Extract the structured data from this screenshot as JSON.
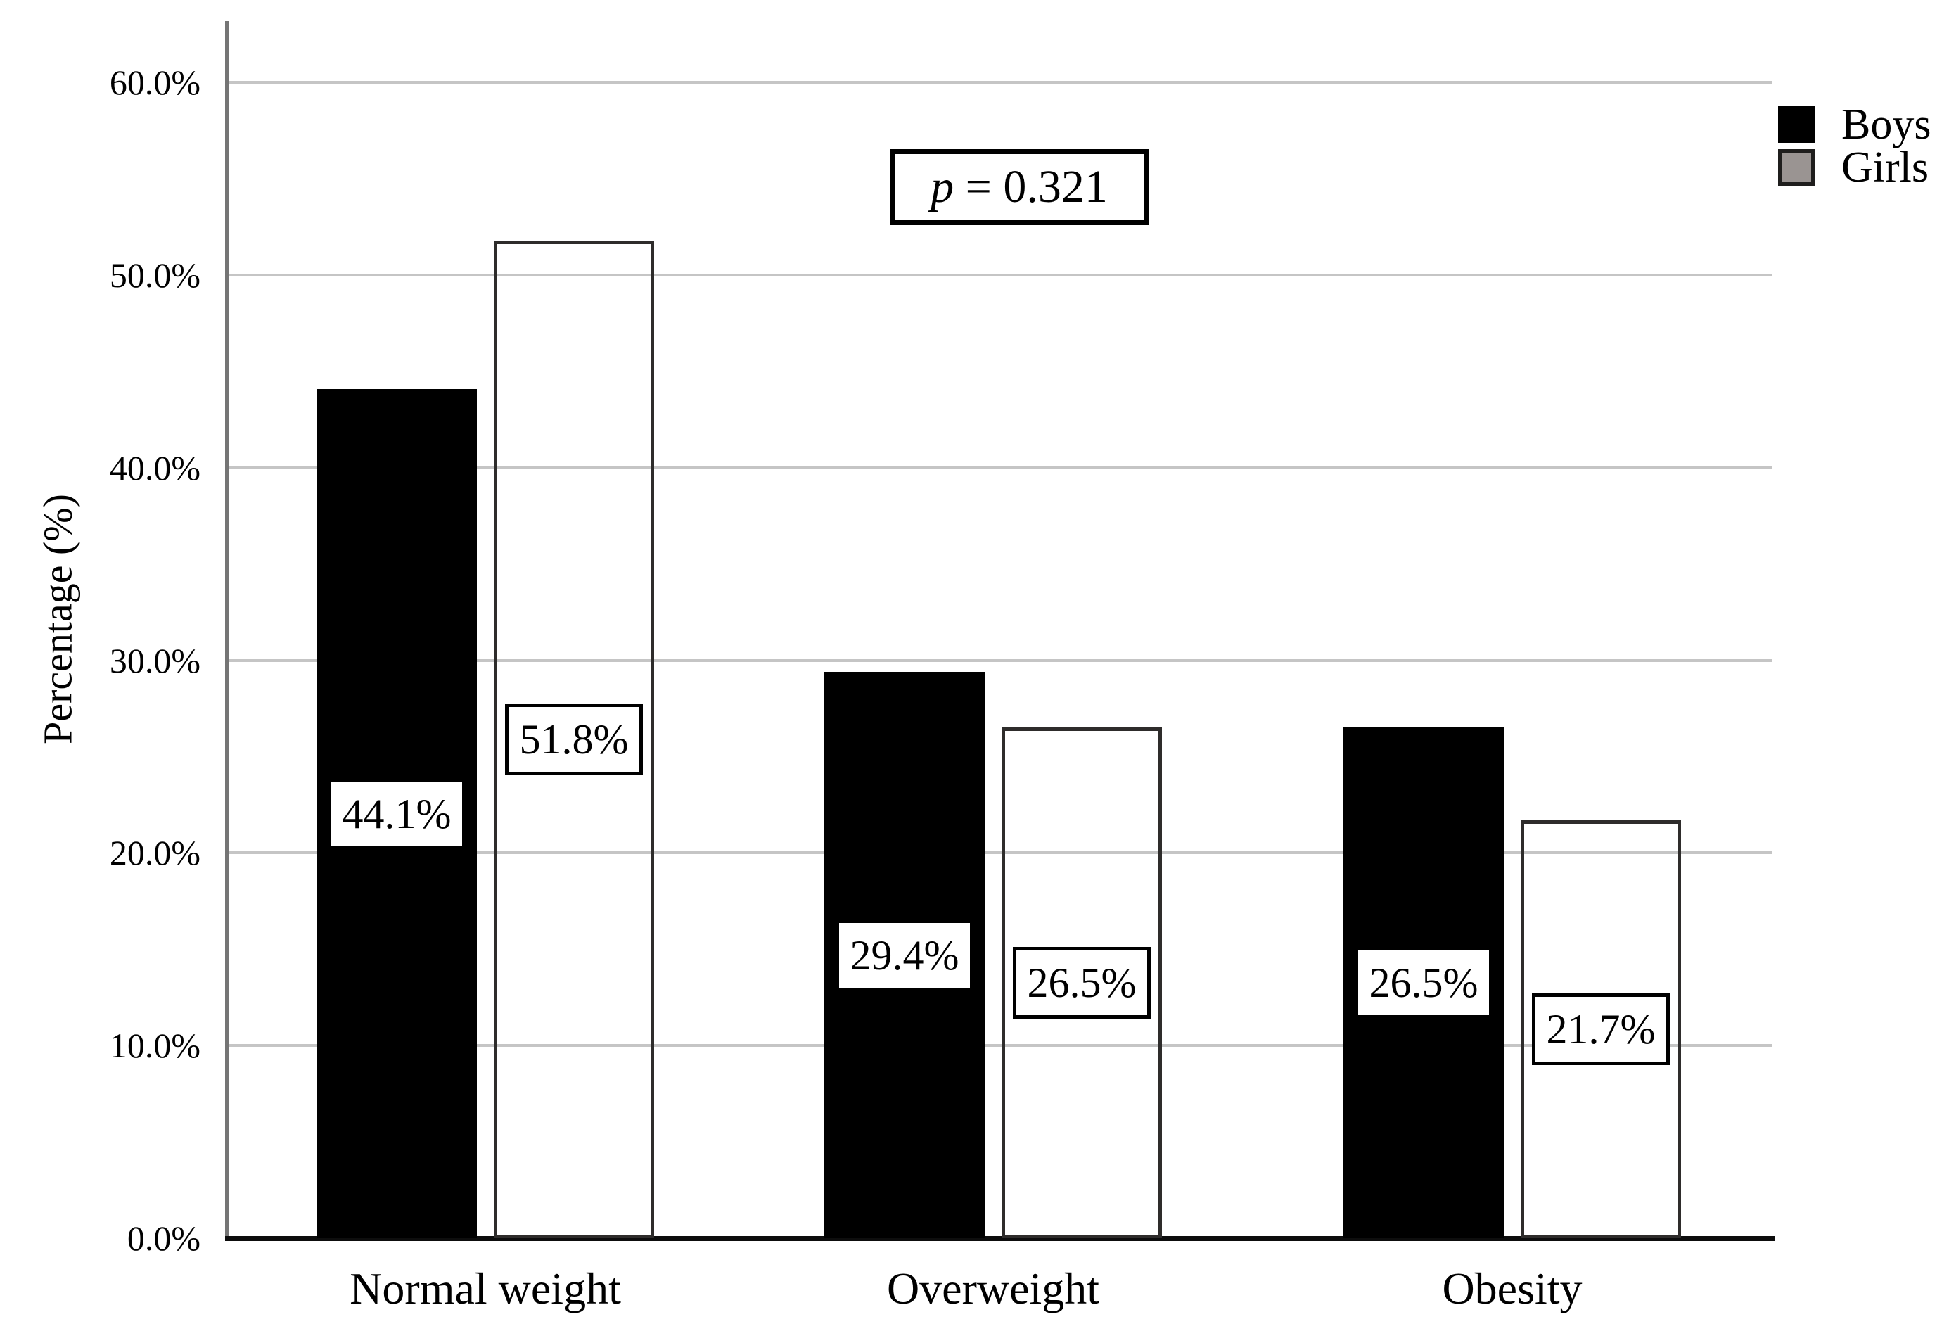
{
  "chart_data": {
    "type": "bar",
    "categories": [
      "Normal weight",
      "Overweight",
      "Obesity"
    ],
    "series": [
      {
        "name": "Boys",
        "color": "#000000",
        "values": [
          44.1,
          29.4,
          26.5
        ],
        "value_labels": [
          "44.1%",
          "29.4%",
          "26.5%"
        ]
      },
      {
        "name": "Girls",
        "color": "#9a9492",
        "values": [
          51.8,
          26.5,
          21.7
        ],
        "value_labels": [
          "51.8%",
          "26.5%",
          "21.7%"
        ]
      }
    ],
    "ylabel": "Percentage (%)",
    "yticks": [
      "0.0%",
      "10.0%",
      "20.0%",
      "30.0%",
      "40.0%",
      "50.0%",
      "60.0%"
    ],
    "ytick_values": [
      0,
      10,
      20,
      30,
      40,
      50,
      60
    ],
    "ylim": [
      0,
      63.2
    ],
    "grid": true,
    "legend_position": "top-right",
    "annotation": {
      "symbol": "p",
      "rest": " = 0.321"
    },
    "colors": {
      "boys_bar": "#000000",
      "girls_bar": "#9a9492",
      "girls_bar_border": "#2e2c2b",
      "gridline": "#c5c5c5",
      "y_axis_line": "#757575",
      "x_axis_line": "#0d0d0d",
      "label_box_bg": "#ffffff",
      "label_box_border": "#000000"
    }
  }
}
